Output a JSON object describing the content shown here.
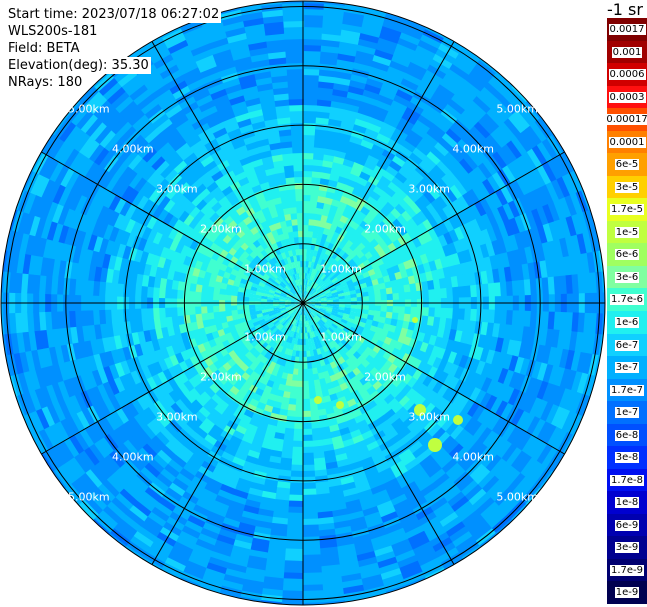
{
  "info": {
    "start_time": "Start time: 2023/07/18 06:27:02",
    "instrument": "WLS200s-181",
    "field": "Field: BETA",
    "elevation": "Elevation(deg): 35.30",
    "nrays": "NRays: 180"
  },
  "colorbar": {
    "units": "-1 sr",
    "labels": [
      "0.0017",
      "0.001",
      "0.0006",
      "0.0003",
      "0.00017",
      "0.0001",
      "6e-5",
      "3e-5",
      "1.7e-5",
      "1e-5",
      "6e-6",
      "3e-6",
      "1.7e-6",
      "1e-6",
      "6e-7",
      "3e-7",
      "1.7e-7",
      "1e-7",
      "6e-8",
      "3e-8",
      "1.7e-8",
      "1e-8",
      "6e-9",
      "3e-9",
      "1.7e-9",
      "1e-9"
    ],
    "colors": [
      "#800000",
      "#a00000",
      "#d00000",
      "#ff1010",
      "#ff5000",
      "#ff8000",
      "#ffa000",
      "#ffd000",
      "#e8ff20",
      "#c0ff40",
      "#a0ff60",
      "#80ffa0",
      "#40ffd0",
      "#20f0f0",
      "#10d0ff",
      "#00b0ff",
      "#0090ff",
      "#0070ff",
      "#0050ff",
      "#0030ff",
      "#0010f0",
      "#0000d0",
      "#0000b0",
      "#000090",
      "#000070",
      "#000050"
    ]
  },
  "range_labels": [
    "1.00km",
    "2.00km",
    "3.00km",
    "4.00km",
    "5.00km"
  ]
}
